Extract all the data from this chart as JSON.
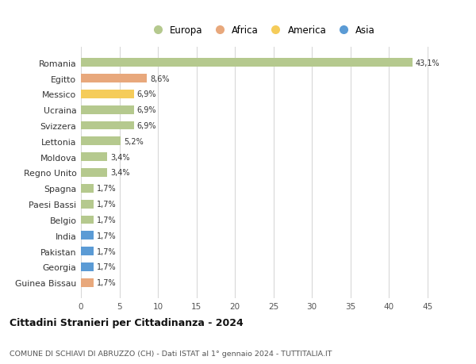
{
  "countries": [
    "Romania",
    "Egitto",
    "Messico",
    "Ucraina",
    "Svizzera",
    "Lettonia",
    "Moldova",
    "Regno Unito",
    "Spagna",
    "Paesi Bassi",
    "Belgio",
    "India",
    "Pakistan",
    "Georgia",
    "Guinea Bissau"
  ],
  "values": [
    43.1,
    8.6,
    6.9,
    6.9,
    6.9,
    5.2,
    3.4,
    3.4,
    1.7,
    1.7,
    1.7,
    1.7,
    1.7,
    1.7,
    1.7
  ],
  "labels": [
    "43,1%",
    "8,6%",
    "6,9%",
    "6,9%",
    "6,9%",
    "5,2%",
    "3,4%",
    "3,4%",
    "1,7%",
    "1,7%",
    "1,7%",
    "1,7%",
    "1,7%",
    "1,7%",
    "1,7%"
  ],
  "continents": [
    "Europa",
    "Africa",
    "America",
    "Europa",
    "Europa",
    "Europa",
    "Europa",
    "Europa",
    "Europa",
    "Europa",
    "Europa",
    "Asia",
    "Asia",
    "Asia",
    "Africa"
  ],
  "colors": {
    "Europa": "#b5c98e",
    "Africa": "#e8a87c",
    "America": "#f5cc5a",
    "Asia": "#5b9bd5"
  },
  "legend_order": [
    "Europa",
    "Africa",
    "America",
    "Asia"
  ],
  "xlim": [
    0,
    47
  ],
  "xticks": [
    0,
    5,
    10,
    15,
    20,
    25,
    30,
    35,
    40,
    45
  ],
  "title": "Cittadini Stranieri per Cittadinanza - 2024",
  "subtitle": "COMUNE DI SCHIAVI DI ABRUZZO (CH) - Dati ISTAT al 1° gennaio 2024 - TUTTITALIA.IT",
  "background_color": "#ffffff",
  "grid_color": "#d8d8d8"
}
